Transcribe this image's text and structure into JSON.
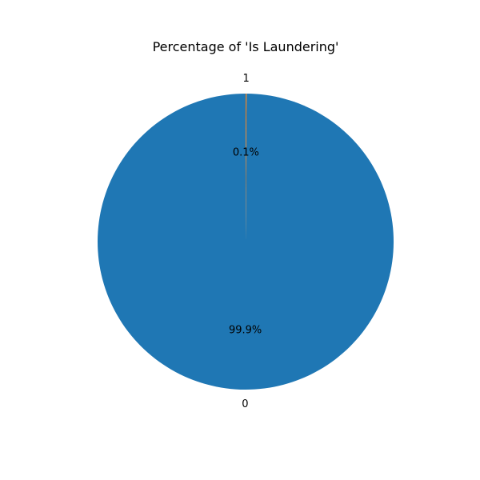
{
  "chart_data": {
    "type": "pie",
    "title": "Percentage of 'Is Laundering'",
    "slices": [
      {
        "label": "0",
        "value": 99.9,
        "pct_label": "99.9%",
        "color": "#1f77b4"
      },
      {
        "label": "1",
        "value": 0.1,
        "pct_label": "0.1%",
        "color": "#ff7f0e"
      }
    ],
    "start_angle_deg": 90,
    "direction": "counterclockwise",
    "legend": "none"
  }
}
